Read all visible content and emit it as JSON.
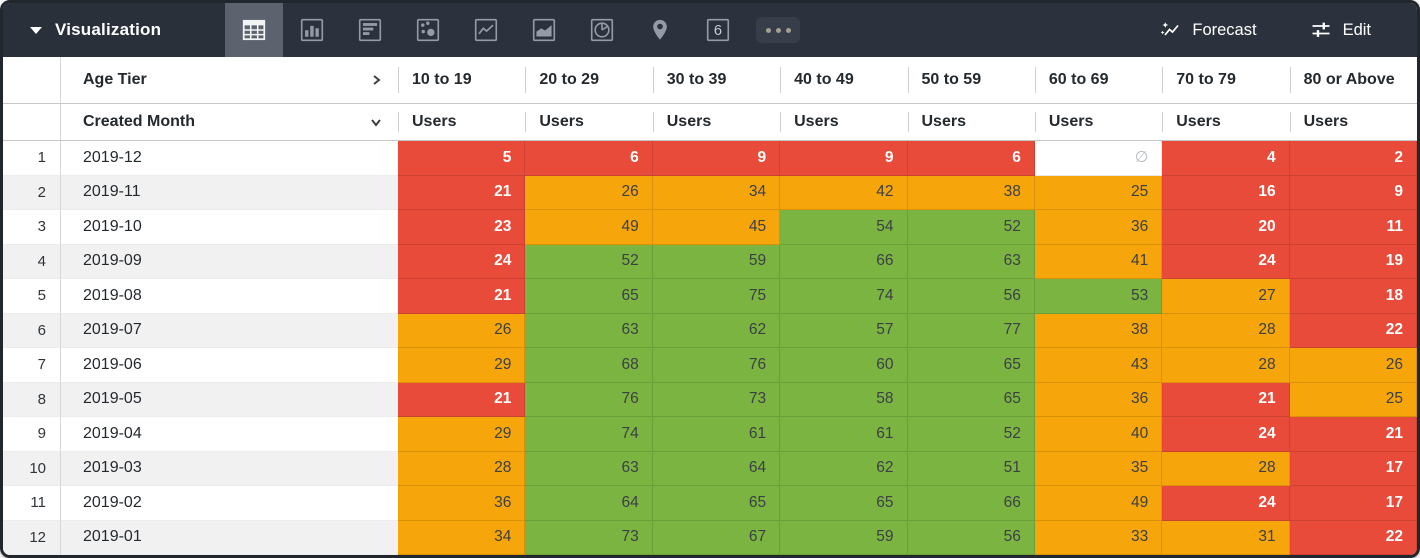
{
  "toolbar": {
    "title": "Visualization",
    "viz_types": [
      {
        "name": "table",
        "selected": true
      },
      {
        "name": "column-chart",
        "selected": false
      },
      {
        "name": "bar-chart",
        "selected": false
      },
      {
        "name": "scatter-plot",
        "selected": false
      },
      {
        "name": "line-chart",
        "selected": false
      },
      {
        "name": "area-chart",
        "selected": false
      },
      {
        "name": "pie-chart",
        "selected": false
      },
      {
        "name": "map",
        "selected": false
      },
      {
        "name": "single-value",
        "selected": false
      },
      {
        "name": "more-viz-types",
        "selected": false
      }
    ],
    "single_value_glyph": "6",
    "forecast_label": "Forecast",
    "edit_label": "Edit"
  },
  "table": {
    "pivot_field": "Age Tier",
    "row_field": "Created Month",
    "measure_label": "Users",
    "null_symbol": "∅",
    "pivot_values": [
      "10 to 19",
      "20 to 29",
      "30 to 39",
      "40 to 49",
      "50 to 59",
      "60 to 69",
      "70 to 79",
      "80 or Above"
    ],
    "rows": [
      {
        "index": "1",
        "month": "2019-12",
        "cells": [
          {
            "v": "5",
            "c": "red"
          },
          {
            "v": "6",
            "c": "red"
          },
          {
            "v": "9",
            "c": "red"
          },
          {
            "v": "9",
            "c": "red"
          },
          {
            "v": "6",
            "c": "red"
          },
          {
            "v": null,
            "c": "null"
          },
          {
            "v": "4",
            "c": "red"
          },
          {
            "v": "2",
            "c": "red"
          }
        ]
      },
      {
        "index": "2",
        "month": "2019-11",
        "cells": [
          {
            "v": "21",
            "c": "red"
          },
          {
            "v": "26",
            "c": "orange"
          },
          {
            "v": "34",
            "c": "orange"
          },
          {
            "v": "42",
            "c": "orange"
          },
          {
            "v": "38",
            "c": "orange"
          },
          {
            "v": "25",
            "c": "orange"
          },
          {
            "v": "16",
            "c": "red"
          },
          {
            "v": "9",
            "c": "red"
          }
        ]
      },
      {
        "index": "3",
        "month": "2019-10",
        "cells": [
          {
            "v": "23",
            "c": "red"
          },
          {
            "v": "49",
            "c": "orange"
          },
          {
            "v": "45",
            "c": "orange"
          },
          {
            "v": "54",
            "c": "green"
          },
          {
            "v": "52",
            "c": "green"
          },
          {
            "v": "36",
            "c": "orange"
          },
          {
            "v": "20",
            "c": "red"
          },
          {
            "v": "11",
            "c": "red"
          }
        ]
      },
      {
        "index": "4",
        "month": "2019-09",
        "cells": [
          {
            "v": "24",
            "c": "red"
          },
          {
            "v": "52",
            "c": "green"
          },
          {
            "v": "59",
            "c": "green"
          },
          {
            "v": "66",
            "c": "green"
          },
          {
            "v": "63",
            "c": "green"
          },
          {
            "v": "41",
            "c": "orange"
          },
          {
            "v": "24",
            "c": "red"
          },
          {
            "v": "19",
            "c": "red"
          }
        ]
      },
      {
        "index": "5",
        "month": "2019-08",
        "cells": [
          {
            "v": "21",
            "c": "red"
          },
          {
            "v": "65",
            "c": "green"
          },
          {
            "v": "75",
            "c": "green"
          },
          {
            "v": "74",
            "c": "green"
          },
          {
            "v": "56",
            "c": "green"
          },
          {
            "v": "53",
            "c": "green"
          },
          {
            "v": "27",
            "c": "orange"
          },
          {
            "v": "18",
            "c": "red"
          }
        ]
      },
      {
        "index": "6",
        "month": "2019-07",
        "cells": [
          {
            "v": "26",
            "c": "orange"
          },
          {
            "v": "63",
            "c": "green"
          },
          {
            "v": "62",
            "c": "green"
          },
          {
            "v": "57",
            "c": "green"
          },
          {
            "v": "77",
            "c": "green"
          },
          {
            "v": "38",
            "c": "orange"
          },
          {
            "v": "28",
            "c": "orange"
          },
          {
            "v": "22",
            "c": "red"
          }
        ]
      },
      {
        "index": "7",
        "month": "2019-06",
        "cells": [
          {
            "v": "29",
            "c": "orange"
          },
          {
            "v": "68",
            "c": "green"
          },
          {
            "v": "76",
            "c": "green"
          },
          {
            "v": "60",
            "c": "green"
          },
          {
            "v": "65",
            "c": "green"
          },
          {
            "v": "43",
            "c": "orange"
          },
          {
            "v": "28",
            "c": "orange"
          },
          {
            "v": "26",
            "c": "orange"
          }
        ]
      },
      {
        "index": "8",
        "month": "2019-05",
        "cells": [
          {
            "v": "21",
            "c": "red"
          },
          {
            "v": "76",
            "c": "green"
          },
          {
            "v": "73",
            "c": "green"
          },
          {
            "v": "58",
            "c": "green"
          },
          {
            "v": "65",
            "c": "green"
          },
          {
            "v": "36",
            "c": "orange"
          },
          {
            "v": "21",
            "c": "red"
          },
          {
            "v": "25",
            "c": "orange"
          }
        ]
      },
      {
        "index": "9",
        "month": "2019-04",
        "cells": [
          {
            "v": "29",
            "c": "orange"
          },
          {
            "v": "74",
            "c": "green"
          },
          {
            "v": "61",
            "c": "green"
          },
          {
            "v": "61",
            "c": "green"
          },
          {
            "v": "52",
            "c": "green"
          },
          {
            "v": "40",
            "c": "orange"
          },
          {
            "v": "24",
            "c": "red"
          },
          {
            "v": "21",
            "c": "red"
          }
        ]
      },
      {
        "index": "10",
        "month": "2019-03",
        "cells": [
          {
            "v": "28",
            "c": "orange"
          },
          {
            "v": "63",
            "c": "green"
          },
          {
            "v": "64",
            "c": "green"
          },
          {
            "v": "62",
            "c": "green"
          },
          {
            "v": "51",
            "c": "green"
          },
          {
            "v": "35",
            "c": "orange"
          },
          {
            "v": "28",
            "c": "orange"
          },
          {
            "v": "17",
            "c": "red"
          }
        ]
      },
      {
        "index": "11",
        "month": "2019-02",
        "cells": [
          {
            "v": "36",
            "c": "orange"
          },
          {
            "v": "64",
            "c": "green"
          },
          {
            "v": "65",
            "c": "green"
          },
          {
            "v": "65",
            "c": "green"
          },
          {
            "v": "66",
            "c": "green"
          },
          {
            "v": "49",
            "c": "orange"
          },
          {
            "v": "24",
            "c": "red"
          },
          {
            "v": "17",
            "c": "red"
          }
        ]
      },
      {
        "index": "12",
        "month": "2019-01",
        "cells": [
          {
            "v": "34",
            "c": "orange"
          },
          {
            "v": "73",
            "c": "green"
          },
          {
            "v": "67",
            "c": "green"
          },
          {
            "v": "59",
            "c": "green"
          },
          {
            "v": "56",
            "c": "green"
          },
          {
            "v": "33",
            "c": "orange"
          },
          {
            "v": "31",
            "c": "orange"
          },
          {
            "v": "22",
            "c": "red"
          }
        ]
      }
    ]
  },
  "colors": {
    "cell_red": "#e84b3a",
    "cell_orange": "#f6a50b",
    "cell_green": "#7cb442",
    "toolbar_bg": "#2c323d",
    "selected_viz_bg": "#5c636f",
    "row_stripe": "#f1f1f2"
  }
}
